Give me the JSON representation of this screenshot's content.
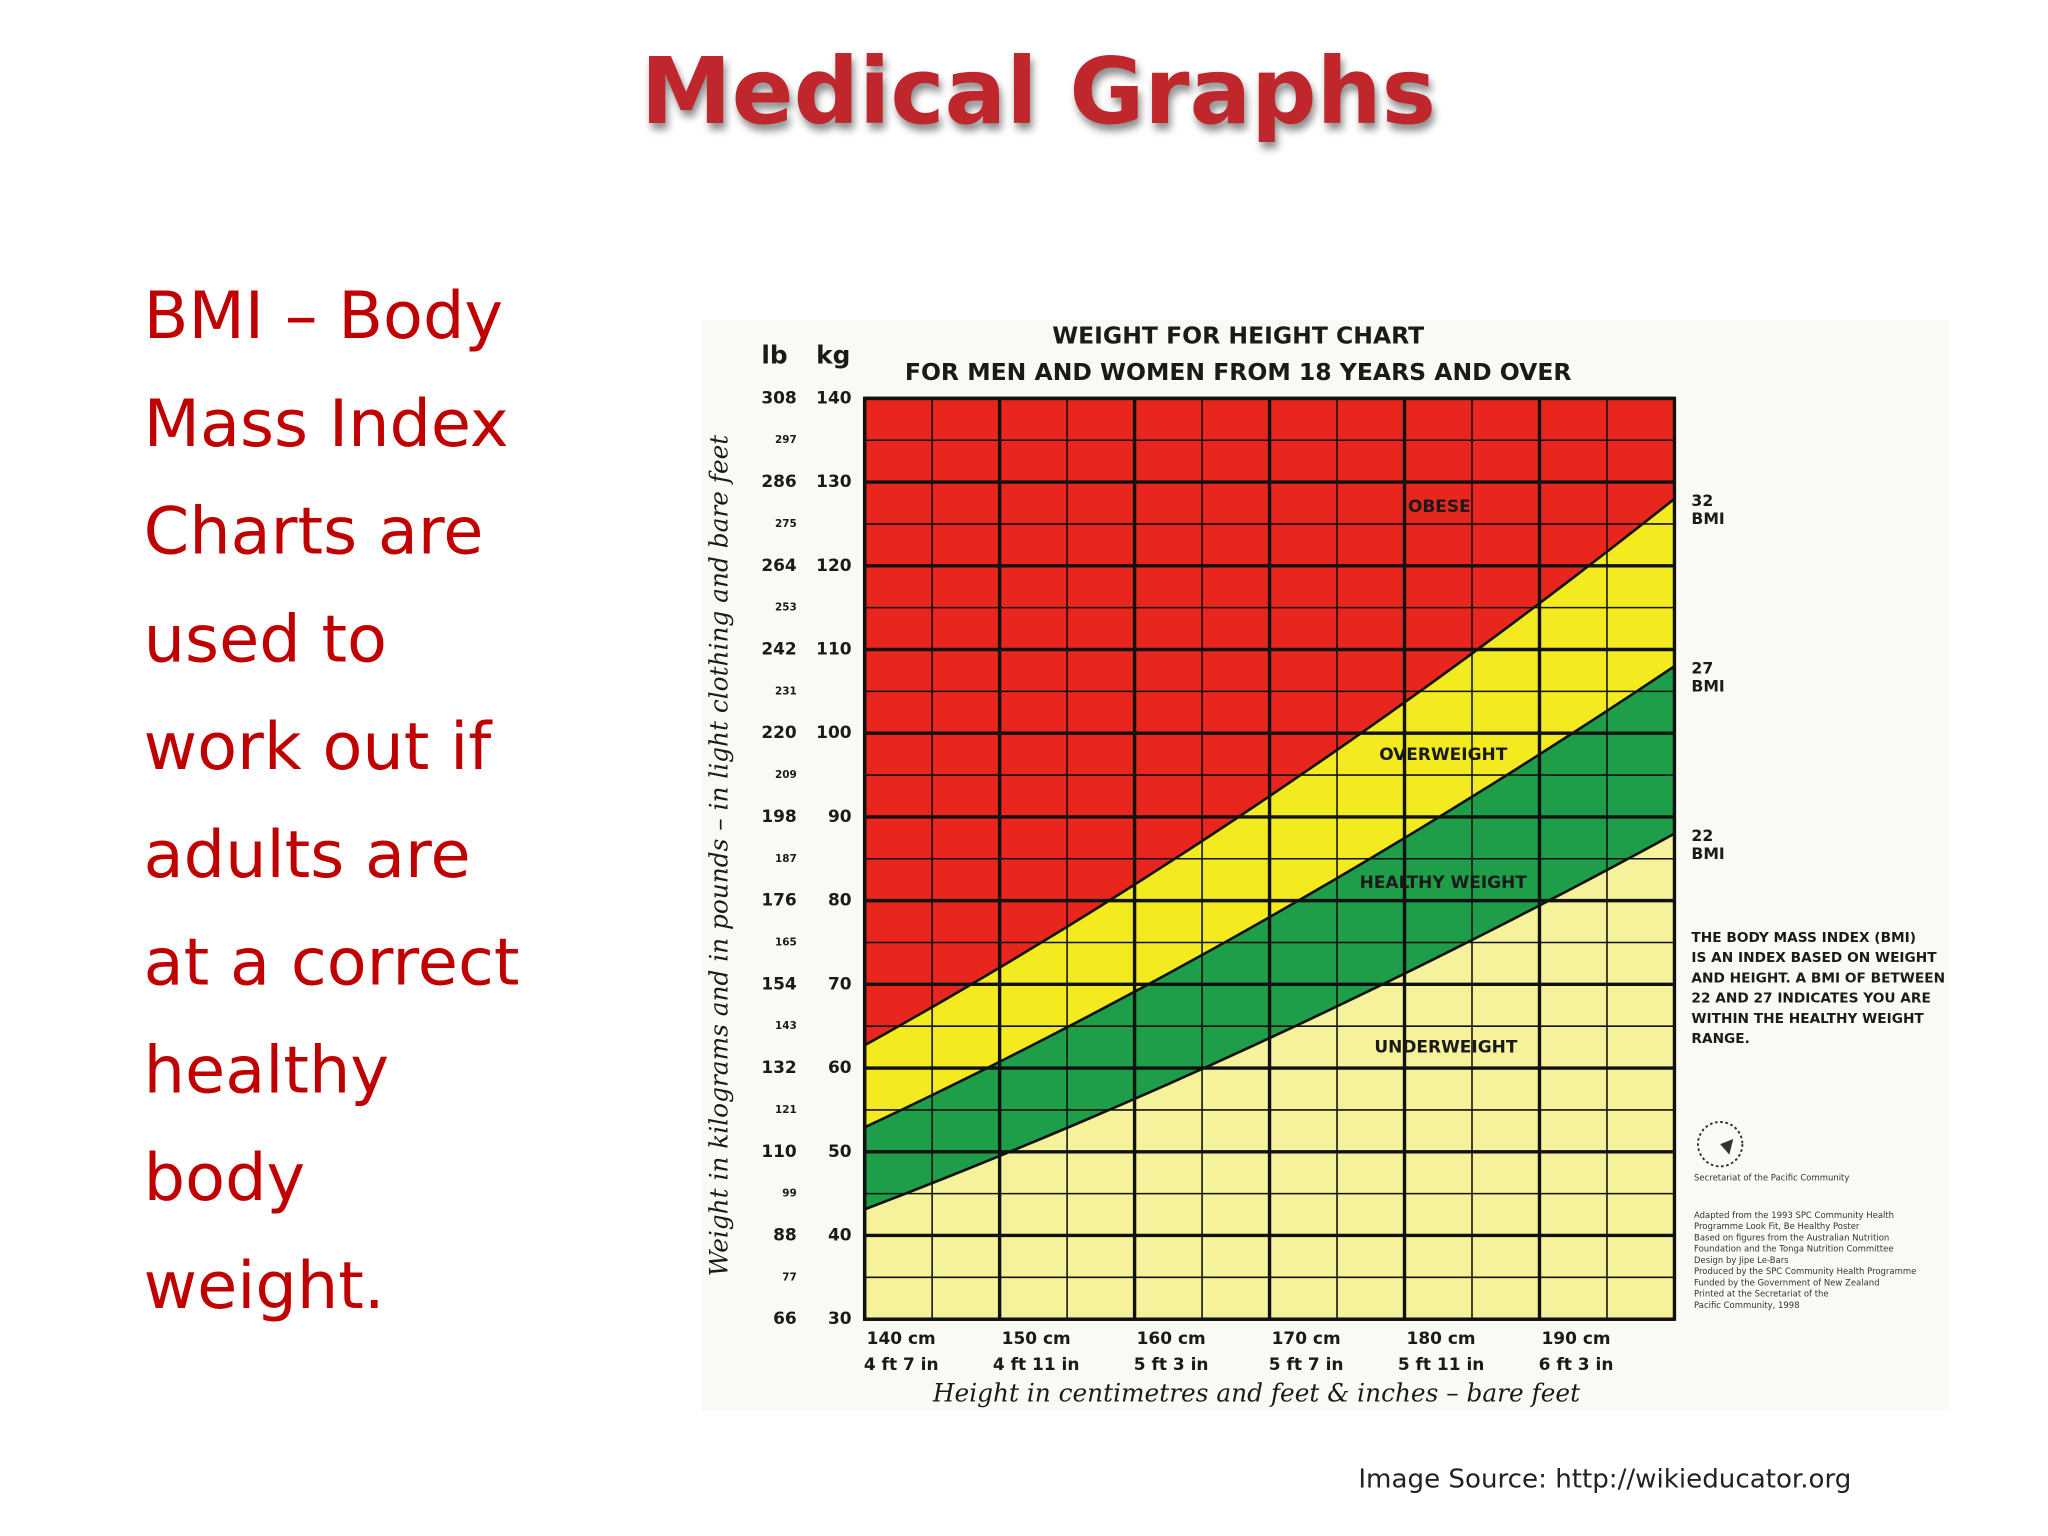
{
  "title": "Medical Graphs",
  "body_lines": [
    "BMI – Body",
    "Mass Index",
    "Charts are",
    "used to",
    "work out if",
    "adults are",
    "at a correct",
    "healthy",
    "body",
    "weight."
  ],
  "source": "Image Source: http://wikieducator.org",
  "chart_data": {
    "type": "bmi-bands",
    "title_lines": [
      "WEIGHT FOR HEIGHT CHART",
      "FOR MEN AND WOMEN FROM 18 YEARS AND OVER"
    ],
    "ylabel": "Weight in kilograms and in pounds – in light clothing and bare feet",
    "xlabel": "Height in centimetres and feet & inches – bare feet",
    "y_unit": "kg",
    "y2_unit": "lb",
    "xlim": [
      140,
      200
    ],
    "ylim": [
      30,
      140
    ],
    "y2lim": [
      66,
      308
    ],
    "xticks": [
      {
        "value": 140,
        "label": "140 cm"
      },
      {
        "value": 150,
        "label": "150 cm"
      },
      {
        "value": 160,
        "label": "160 cm"
      },
      {
        "value": 170,
        "label": "170 cm"
      },
      {
        "value": 180,
        "label": "180 cm"
      },
      {
        "value": 190,
        "label": "190 cm"
      }
    ],
    "xticks_imperial": [
      "4 ft 7 in",
      "4 ft 11 in",
      "5 ft 3 in",
      "5 ft 7 in",
      "5 ft 11 in",
      "6 ft 3 in"
    ],
    "x_minor_grid": [
      145,
      155,
      165,
      175,
      185,
      195,
      200
    ],
    "yticks": [
      30,
      40,
      50,
      60,
      70,
      80,
      90,
      100,
      110,
      120,
      130,
      140
    ],
    "y2ticks": [
      66,
      77,
      88,
      99,
      110,
      121,
      132,
      143,
      154,
      165,
      176,
      187,
      198,
      209,
      220,
      231,
      242,
      253,
      264,
      275,
      286,
      297,
      308
    ],
    "bmi_lines": [
      {
        "value": 32,
        "label": "BMI"
      },
      {
        "value": 27,
        "label": "BMI"
      },
      {
        "value": 22,
        "label": "BMI"
      }
    ],
    "band_colors": [
      "#e8261e",
      "#f3ea1f",
      "#1e9e48",
      "#f6f29b"
    ],
    "bands": [
      "OBESE",
      "OVERWEIGHT",
      "HEALTHY WEIGHT",
      "UNDERWEIGHT"
    ],
    "note_lines": [
      "THE BODY MASS INDEX (BMI)",
      "IS AN INDEX BASED ON WEIGHT",
      "AND HEIGHT. A BMI OF BETWEEN",
      "22 AND 27 INDICATES YOU ARE",
      "WITHIN THE HEALTHY WEIGHT",
      "RANGE."
    ],
    "credit_lines": [
      "Secretariat of the Pacific Community",
      "Adapted from the 1993 SPC Community Health",
      "Programme Look Fit, Be Healthy Poster",
      "Based on figures from the Australian Nutrition",
      "Foundation and the Tonga Nutrition Committee",
      "Design by Jipe Le-Bars",
      "Produced by the SPC Community Health Programme",
      "Funded by the Government of New Zealand",
      "Printed at the Secretariat of the",
      "Pacific Community, 1998"
    ]
  }
}
